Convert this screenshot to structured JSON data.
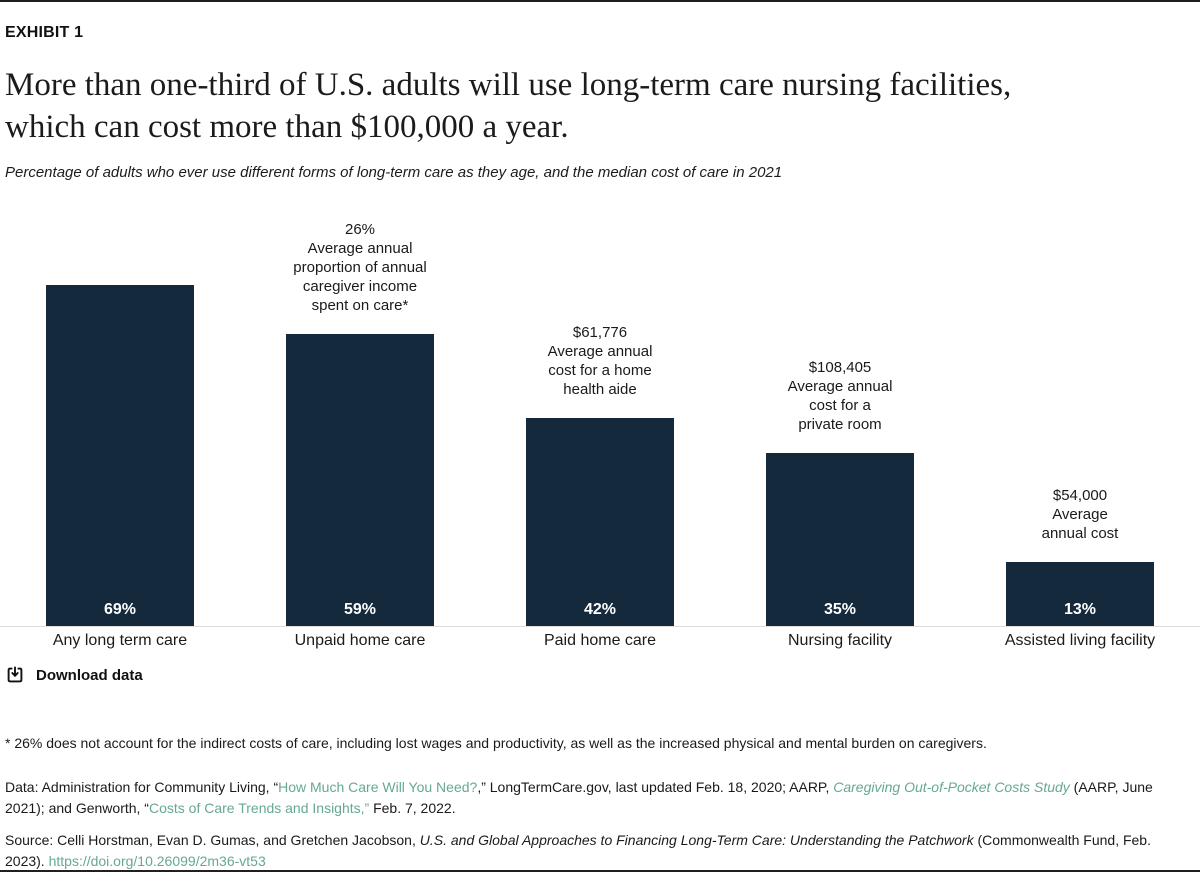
{
  "exhibit_label": "EXHIBIT 1",
  "title": "More than one-third of U.S. adults will use long-term care nursing facilities,\nwhich can cost more than $100,000 a year.",
  "subtitle": "Percentage of adults who ever use different forms of long-term care as they age, and the median cost of care in 2021",
  "chart_data": {
    "type": "bar",
    "categories": [
      "Any long term care",
      "Unpaid home care",
      "Paid home care",
      "Nursing facility",
      "Assisted living facility"
    ],
    "values": [
      69,
      59,
      42,
      35,
      13
    ],
    "value_labels": [
      "69%",
      "59%",
      "42%",
      "35%",
      "13%"
    ],
    "annotations": [
      "",
      "26%\nAverage annual\nproportion of annual\ncaregiver income\nspent on care*",
      "$61,776\nAverage annual\ncost for a home\nhealth aide",
      "$108,405\nAverage annual\ncost for a\nprivate room",
      "$54,000\nAverage\nannual cost"
    ],
    "bar_color": "#15293D",
    "ylim": [
      0,
      85
    ],
    "grid": false,
    "legend": "none",
    "value_label_position": "inside-bottom",
    "annotation_position": "above-bar"
  },
  "download": {
    "label": "Download data"
  },
  "footnotes": {
    "asterisk": "* 26% does not account for the indirect costs of care, including lost wages and productivity, as well as the increased physical and mental burden on caregivers.",
    "data_line": {
      "segments": [
        {
          "text": "Data: Administration for Community Living, “"
        },
        {
          "text": "How Much Care Will You Need?"
        },
        {
          "text": ",” LongTermCare.gov, last updated Feb. 18, 2020; AARP, "
        },
        {
          "text": "Caregiving Out-of-Pocket Costs Study"
        },
        {
          "text": " (AARP, June 2021); and Genworth, “"
        },
        {
          "text": "Costs of Care Trends and Insights,”"
        },
        {
          "text": " Feb. 7, 2022."
        }
      ]
    },
    "source_line": {
      "segments": [
        {
          "text": "Source: Celli Horstman, Evan D. Gumas, and Gretchen Jacobson, "
        },
        {
          "text": "U.S. and Global Approaches to Financing Long-Term Care: Understanding the Patchwork"
        },
        {
          "text": " (Commonwealth Fund, Feb. 2023). "
        },
        {
          "text": "https://doi.org/10.26099/2m36-vt53"
        }
      ]
    }
  },
  "colors": {
    "bar": "#15293D",
    "link": "#66A992",
    "text": "#1A1A1A",
    "baseline": "#DEDEDE",
    "border": "#1F1F1F"
  }
}
